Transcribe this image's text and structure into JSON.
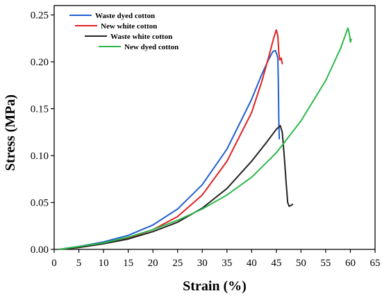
{
  "chart_data": {
    "type": "line",
    "xlabel": "Strain (%)",
    "ylabel": "Stress (MPa)",
    "xlim": [
      0,
      65
    ],
    "ylim": [
      0,
      0.26
    ],
    "xticks": [
      0,
      5,
      10,
      15,
      20,
      25,
      30,
      35,
      40,
      45,
      50,
      55,
      60,
      65
    ],
    "yticks": [
      0.0,
      0.05,
      0.1,
      0.15,
      0.2,
      0.25
    ],
    "ytick_labels": [
      "0.00",
      "0.05",
      "0.10",
      "0.15",
      "0.20",
      "0.25"
    ],
    "grid": false,
    "legend": "top-left",
    "series": [
      {
        "name": "Waste dyed cotton",
        "color": "#1f5fd1",
        "x": [
          1,
          5,
          10,
          15,
          20,
          25,
          30,
          35,
          40,
          42,
          43.5,
          44.3,
          44.8,
          45.1,
          45.3,
          45.4,
          45.5,
          45.6
        ],
        "y": [
          0.0,
          0.003,
          0.008,
          0.015,
          0.026,
          0.043,
          0.069,
          0.107,
          0.16,
          0.186,
          0.203,
          0.211,
          0.212,
          0.208,
          0.204,
          0.18,
          0.14,
          0.118
        ]
      },
      {
        "name": "New white cotton",
        "color": "#e02020",
        "x": [
          1,
          5,
          10,
          15,
          20,
          25,
          30,
          35,
          40,
          42,
          43.5,
          44.5,
          45,
          45.3,
          45.5,
          45.7,
          46,
          46.2
        ],
        "y": [
          0.0,
          0.002,
          0.006,
          0.012,
          0.021,
          0.035,
          0.058,
          0.094,
          0.146,
          0.178,
          0.206,
          0.226,
          0.234,
          0.228,
          0.21,
          0.202,
          0.204,
          0.198
        ]
      },
      {
        "name": "Waste white cotton",
        "color": "#222222",
        "x": [
          1,
          5,
          10,
          15,
          20,
          25,
          30,
          35,
          40,
          43,
          45,
          45.8,
          46.2,
          46.6,
          47,
          47.3,
          47.6,
          48,
          48.3
        ],
        "y": [
          0.0,
          0.002,
          0.006,
          0.011,
          0.019,
          0.029,
          0.044,
          0.065,
          0.094,
          0.114,
          0.128,
          0.132,
          0.125,
          0.1,
          0.07,
          0.05,
          0.046,
          0.047,
          0.048
        ]
      },
      {
        "name": "New dyed cotton",
        "color": "#2db84b",
        "x": [
          1,
          5,
          10,
          15,
          20,
          25,
          30,
          35,
          40,
          45,
          50,
          55,
          58,
          59.5,
          59.8,
          60,
          60.2
        ],
        "y": [
          0.0,
          0.003,
          0.007,
          0.013,
          0.021,
          0.031,
          0.043,
          0.058,
          0.077,
          0.103,
          0.137,
          0.18,
          0.214,
          0.236,
          0.23,
          0.221,
          0.224
        ]
      }
    ]
  }
}
